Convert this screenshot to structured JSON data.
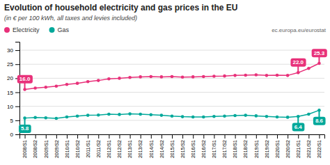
{
  "chart_data": {
    "type": "line",
    "title": "Evolution of household electricity and gas prices in the EU",
    "subtitle": "(in € per 100 kWh, all taxes and levies included)",
    "watermark": "ec.europa.eu/eurostat",
    "categories": [
      "2008/S1",
      "2008/S2",
      "2009/S1",
      "2009/S2",
      "2010/S1",
      "2010/S2",
      "2011/S1",
      "2011/S2",
      "2012/S1",
      "2012/S2",
      "2013/S1",
      "2013/S2",
      "2014/S1",
      "2014/S2",
      "2015/S1",
      "2015/S2",
      "2016/S1",
      "2016/S2",
      "2017/S1",
      "2017/S2",
      "2018/S1",
      "2018/S2",
      "2019/S1",
      "2019/S2",
      "2020/S1",
      "2020/S2",
      "2021/S1",
      "2021/S2",
      "2022/S1"
    ],
    "series": [
      {
        "name": "Electricity",
        "color": "#e8317a",
        "marker": "circle",
        "values": [
          16.0,
          16.5,
          16.8,
          17.2,
          17.8,
          18.2,
          18.8,
          19.2,
          19.8,
          20.0,
          20.3,
          20.5,
          20.6,
          20.5,
          20.6,
          20.4,
          20.5,
          20.6,
          20.7,
          20.8,
          21.0,
          21.1,
          21.2,
          21.0,
          21.1,
          21.0,
          22.0,
          23.5,
          25.3
        ]
      },
      {
        "name": "Gas",
        "color": "#00a89a",
        "marker": "circle",
        "values": [
          5.8,
          6.0,
          5.9,
          5.7,
          6.2,
          6.5,
          6.8,
          6.9,
          7.2,
          7.1,
          7.3,
          7.2,
          7.0,
          6.8,
          6.5,
          6.3,
          6.2,
          6.2,
          6.4,
          6.5,
          6.7,
          6.8,
          6.6,
          6.4,
          6.2,
          6.1,
          6.4,
          7.2,
          8.6
        ]
      }
    ],
    "ylim": [
      0,
      33
    ],
    "yticks": [
      0,
      5,
      10,
      15,
      20,
      25,
      30
    ],
    "grid": true,
    "legend": "top-left",
    "annotations": [
      {
        "series": "Electricity",
        "category": "2008/S1",
        "value": 16.0,
        "label": "16.0"
      },
      {
        "series": "Electricity",
        "category": "2021/S1",
        "value": 22.0,
        "label": "22.0"
      },
      {
        "series": "Electricity",
        "category": "2022/S1",
        "value": 25.3,
        "label": "25.3"
      },
      {
        "series": "Gas",
        "category": "2008/S1",
        "value": 5.8,
        "label": "5.8"
      },
      {
        "series": "Gas",
        "category": "2021/S1",
        "value": 6.4,
        "label": "6.4"
      },
      {
        "series": "Gas",
        "category": "2022/S1",
        "value": 8.6,
        "label": "8.6"
      }
    ]
  }
}
